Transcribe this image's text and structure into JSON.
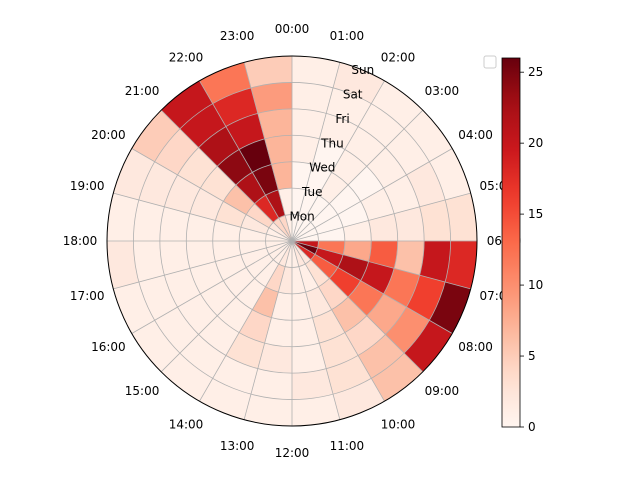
{
  "chart_data": {
    "type": "heatmap",
    "projection": "polar",
    "angular_direction": "clockwise",
    "angular_zero": "top",
    "angular_tick_labels": [
      "00:00",
      "01:00",
      "02:00",
      "03:00",
      "04:00",
      "05:00",
      "06:00",
      "07:00",
      "08:00",
      "09:00",
      "10:00",
      "11:00",
      "12:00",
      "13:00",
      "14:00",
      "15:00",
      "16:00",
      "17:00",
      "18:00",
      "19:00",
      "20:00",
      "21:00",
      "22:00",
      "23:00"
    ],
    "radial_tick_labels": [
      "Mon",
      "Tue",
      "Wed",
      "Thu",
      "Fri",
      "Sat",
      "Sun"
    ],
    "colormap": "Reds",
    "colorbar": {
      "min": 0,
      "max": 26,
      "ticks": [
        0,
        5,
        10,
        15,
        20,
        25
      ]
    },
    "grid": true,
    "legend": {
      "placement": "top-right",
      "entries": []
    },
    "rows": [
      "Mon",
      "Tue",
      "Wed",
      "Thu",
      "Fri",
      "Sat",
      "Sun"
    ],
    "columns": [
      "00:00",
      "01:00",
      "02:00",
      "03:00",
      "04:00",
      "05:00",
      "06:00",
      "07:00",
      "08:00",
      "09:00",
      "10:00",
      "11:00",
      "12:00",
      "13:00",
      "14:00",
      "15:00",
      "16:00",
      "17:00",
      "18:00",
      "19:00",
      "20:00",
      "21:00",
      "22:00",
      "23:00"
    ],
    "values": [
      [
        0,
        0,
        0,
        0,
        0,
        0,
        20,
        26,
        18,
        2,
        2,
        1,
        1,
        2,
        1,
        1,
        1,
        1,
        1,
        1,
        2,
        4,
        4,
        1
      ],
      [
        0,
        0,
        0,
        0,
        0,
        0,
        12,
        20,
        14,
        3,
        1,
        1,
        2,
        4,
        1,
        1,
        1,
        1,
        1,
        2,
        4,
        18,
        22,
        1
      ],
      [
        0,
        0,
        1,
        0,
        0,
        1,
        8,
        22,
        16,
        4,
        2,
        1,
        1,
        6,
        1,
        1,
        1,
        1,
        1,
        3,
        6,
        22,
        25,
        7
      ],
      [
        1,
        0,
        1,
        0,
        1,
        2,
        14,
        20,
        12,
        6,
        3,
        1,
        1,
        4,
        1,
        1,
        1,
        1,
        1,
        2,
        3,
        24,
        26,
        7
      ],
      [
        1,
        1,
        1,
        1,
        1,
        2,
        6,
        12,
        8,
        4,
        3,
        1,
        2,
        3,
        1,
        1,
        1,
        1,
        1,
        2,
        3,
        22,
        20,
        7
      ],
      [
        1,
        1,
        1,
        1,
        2,
        3,
        20,
        16,
        10,
        6,
        3,
        2,
        1,
        1,
        1,
        1,
        1,
        1,
        1,
        2,
        4,
        20,
        18,
        9
      ],
      [
        1,
        2,
        1,
        1,
        1,
        3,
        18,
        25,
        20,
        6,
        2,
        1,
        1,
        1,
        1,
        1,
        1,
        2,
        1,
        2,
        5,
        20,
        12,
        5
      ]
    ]
  }
}
